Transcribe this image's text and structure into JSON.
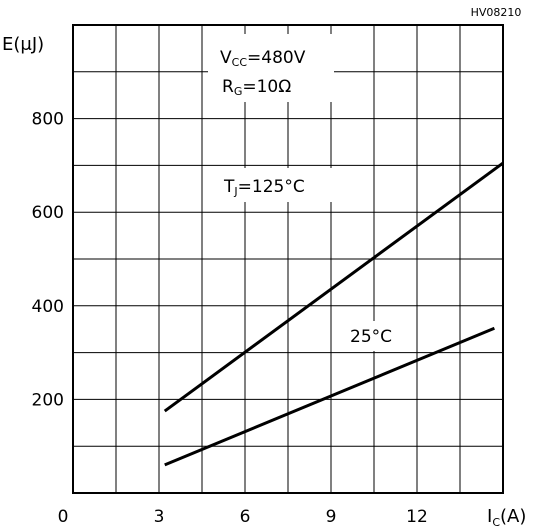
{
  "chart_data": {
    "type": "line",
    "figure_code": "HV08210",
    "xlabel": {
      "main": "I",
      "sub": "C",
      "unit": "(A)"
    },
    "ylabel": {
      "main": "E",
      "unit": "(μJ)"
    },
    "xlim": [
      0,
      15
    ],
    "ylim": [
      0,
      1000
    ],
    "x_ticks": [
      0,
      3,
      6,
      9,
      12
    ],
    "x_tick_labels": [
      "0",
      "3",
      "6",
      "9",
      "12"
    ],
    "y_ticks": [
      200,
      400,
      600,
      800
    ],
    "y_tick_labels": [
      "200",
      "400",
      "600",
      "800"
    ],
    "grid": true,
    "conditions": [
      {
        "main": "V",
        "sub": "CC",
        "rest": "=480V"
      },
      {
        "main": "R",
        "sub": "G",
        "rest": "=10Ω"
      }
    ],
    "series": [
      {
        "name": "TJ=125°C",
        "label": {
          "main": "T",
          "sub": "J",
          "rest": "=125°C"
        },
        "x": [
          3.2,
          15
        ],
        "y": [
          175,
          705
        ],
        "label_at": [
          7.0,
          630
        ]
      },
      {
        "name": "25°C",
        "label": {
          "main": "",
          "sub": "",
          "rest": "25°C"
        },
        "x": [
          3.2,
          14.7
        ],
        "y": [
          60,
          352
        ],
        "label_at": [
          11.5,
          325
        ]
      }
    ]
  }
}
